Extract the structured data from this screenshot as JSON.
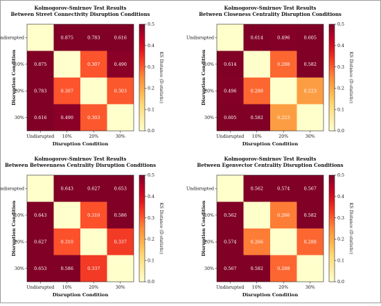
{
  "colors": {
    "cmap": [
      "#ffffcc",
      "#ffeda0",
      "#fed976",
      "#feb24c",
      "#fd8d3c",
      "#fc4e2a",
      "#e31a1c",
      "#bd0026",
      "#800026"
    ],
    "diag": "#ffffcc"
  },
  "chart_data": [
    {
      "type": "heatmap",
      "title": "Kolmogorov-Smirnov Test Results",
      "subtitle": "Between Street Connectivity Disruption Conditions",
      "xlabel": "Disruption Condition",
      "ylabel": "Disruption Condition",
      "categories": [
        "Undisrupted",
        "10%",
        "20%",
        "30%"
      ],
      "values": [
        [
          null,
          0.875,
          0.783,
          0.616
        ],
        [
          0.875,
          null,
          0.307,
          0.49
        ],
        [
          0.783,
          0.307,
          null,
          0.303
        ],
        [
          0.616,
          0.49,
          0.303,
          null
        ]
      ],
      "cell_labels": [
        [
          "",
          "0.875",
          "0.783",
          "0.616"
        ],
        [
          "0.875",
          "",
          "0.307",
          "0.490"
        ],
        [
          "0.783",
          "0.307",
          "",
          "0.303"
        ],
        [
          "0.616",
          "0.490",
          "0.303",
          ""
        ]
      ],
      "colorbar": {
        "label": "KS Distance (D-statistic)",
        "range": [
          0,
          0.5
        ],
        "ticks": [
          "0.0",
          "0.1",
          "0.2",
          "0.3",
          "0.4",
          "0.5"
        ]
      }
    },
    {
      "type": "heatmap",
      "title": "Kolmogorov-Smirnov Test Results",
      "subtitle": "Between Closeness Centrality Disruption Conditions",
      "xlabel": "Disruption Condition",
      "ylabel": "Disruption Condition",
      "categories": [
        "Undisrupted",
        "10%",
        "20%",
        "30%"
      ],
      "values": [
        [
          null,
          0.614,
          0.496,
          0.605
        ],
        [
          0.614,
          null,
          0.288,
          0.582
        ],
        [
          0.496,
          0.288,
          null,
          0.223
        ],
        [
          0.605,
          0.582,
          0.223,
          null
        ]
      ],
      "cell_labels": [
        [
          "",
          "0.614",
          "0.496",
          "0.605"
        ],
        [
          "0.614",
          "",
          "0.288",
          "0.582"
        ],
        [
          "0.496",
          "0.288",
          "",
          "0.223"
        ],
        [
          "0.605",
          "0.582",
          "0.223",
          ""
        ]
      ],
      "colorbar": {
        "label": "KS Distance (D-statistic)",
        "range": [
          0,
          0.5
        ],
        "ticks": [
          "0.0",
          "0.1",
          "0.2",
          "0.3",
          "0.4",
          "0.5"
        ]
      }
    },
    {
      "type": "heatmap",
      "title": "Kolmogorov-Smirnov Test Results",
      "subtitle": "Between Betweenness Centrality Disruption Conditions",
      "xlabel": "Disruption Condition",
      "ylabel": "Disruption Condition",
      "categories": [
        "Undisrupted",
        "10%",
        "20%",
        "30%"
      ],
      "values": [
        [
          null,
          0.643,
          0.627,
          0.653
        ],
        [
          0.643,
          null,
          0.31,
          0.586
        ],
        [
          0.627,
          0.31,
          null,
          0.337
        ],
        [
          0.653,
          0.586,
          0.337,
          null
        ]
      ],
      "cell_labels": [
        [
          "",
          "0.643",
          "0.627",
          "0.653"
        ],
        [
          "0.643",
          "",
          "0.310",
          "0.586"
        ],
        [
          "0.627",
          "0.310",
          "",
          "0.337"
        ],
        [
          "0.653",
          "0.586",
          "0.337",
          ""
        ]
      ],
      "colorbar": {
        "label": "KS Distance (D-statistic)",
        "range": [
          0,
          0.5
        ],
        "ticks": [
          "0.0",
          "0.1",
          "0.2",
          "0.3",
          "0.4",
          "0.5"
        ]
      }
    },
    {
      "type": "heatmap",
      "title": "Kolmogorov-Smirnov Test Results",
      "subtitle": "Between Egenvector Centrality Disruption Conditions",
      "xlabel": "Disruption Condition",
      "ylabel": "Disruption Condition",
      "categories": [
        "Undisrupted",
        "10%",
        "20%",
        "30%"
      ],
      "values": [
        [
          null,
          0.562,
          0.574,
          0.567
        ],
        [
          0.562,
          null,
          0.266,
          0.582
        ],
        [
          0.574,
          0.266,
          null,
          0.288
        ],
        [
          0.567,
          0.582,
          0.288,
          null
        ]
      ],
      "cell_labels": [
        [
          "",
          "0.562",
          "0.574",
          "0.567"
        ],
        [
          "0.562",
          "",
          "0.266",
          "0.582"
        ],
        [
          "0.574",
          "0.266",
          "",
          "0.288"
        ],
        [
          "0.567",
          "0.582",
          "0.288",
          ""
        ]
      ],
      "colorbar": {
        "label": "KS Distance (D-statistic)",
        "range": [
          0,
          0.5
        ],
        "ticks": [
          "0.0",
          "0.1",
          "0.2",
          "0.3",
          "0.4",
          "0.5"
        ]
      }
    }
  ]
}
